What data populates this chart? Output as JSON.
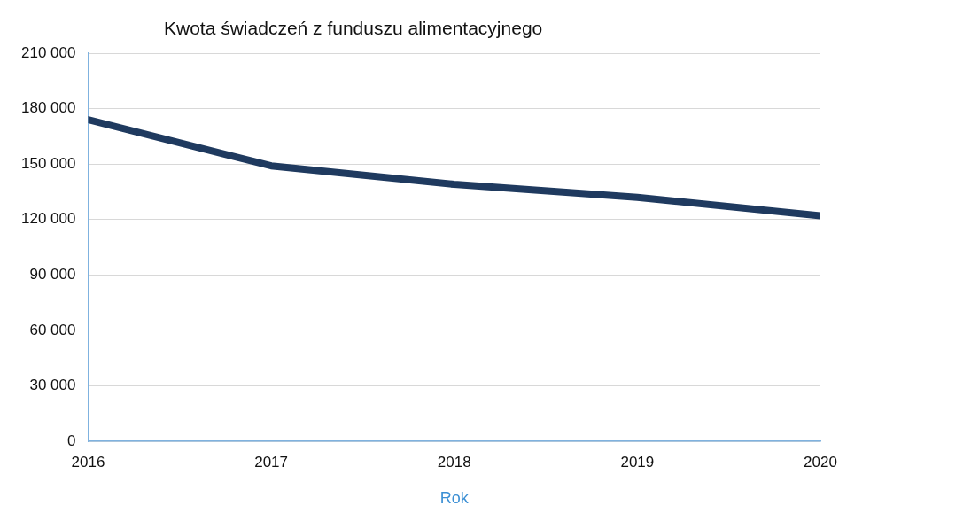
{
  "chart_data": {
    "type": "line",
    "title": "Kwota świadczeń z funduszu alimentacyjnego",
    "xlabel": "Rok",
    "x": [
      2016,
      2017,
      2018,
      2019,
      2020
    ],
    "series": [
      {
        "color": "#1f3a5f",
        "values": [
          174000,
          149000,
          139000,
          132000,
          122000
        ]
      }
    ],
    "xlim": [
      2016,
      2020
    ],
    "xticks": [
      2016,
      2017,
      2018,
      2019,
      2020
    ],
    "ylim": [
      0,
      210000
    ],
    "yticks": [
      {
        "value": 0,
        "label": "0"
      },
      {
        "value": 30000,
        "label": "30 000"
      },
      {
        "value": 60000,
        "label": "60 000"
      },
      {
        "value": 90000,
        "label": "90 000"
      },
      {
        "value": 120000,
        "label": "120 000"
      },
      {
        "value": 150000,
        "label": "150 000"
      },
      {
        "value": 180000,
        "label": "180 000"
      },
      {
        "value": 210000,
        "label": "210 000"
      }
    ],
    "grid": "y",
    "legend": false,
    "marker": "none",
    "line_style": "solid"
  }
}
